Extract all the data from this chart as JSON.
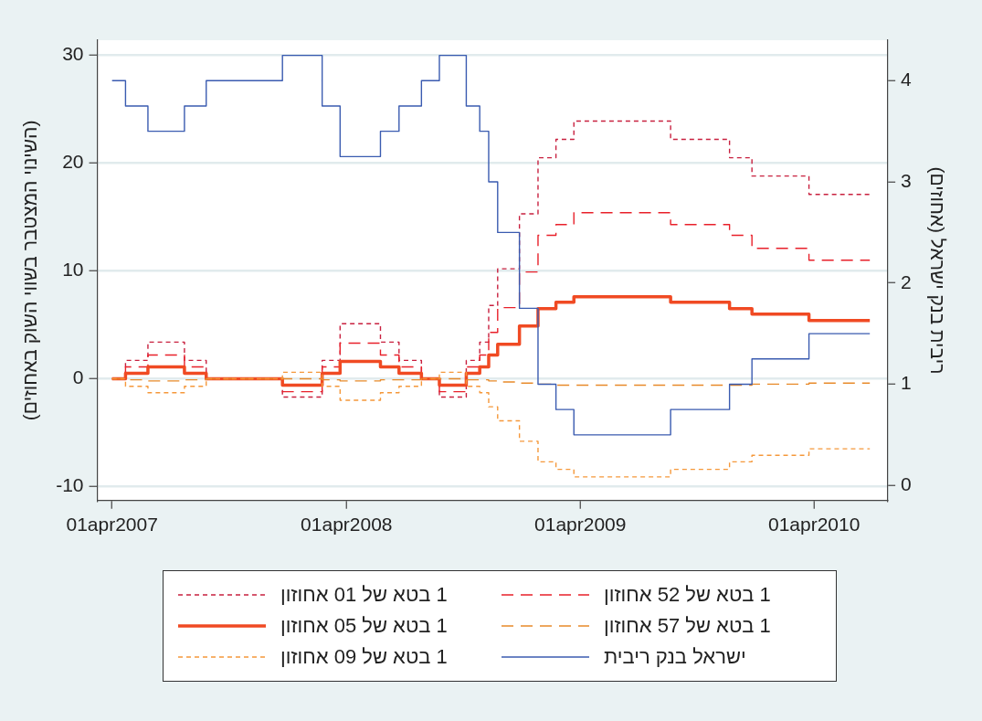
{
  "chart_data": {
    "type": "step",
    "x": [
      "2007-04-01",
      "2007-04-22",
      "2007-05-27",
      "2007-07-23",
      "2007-08-26",
      "2007-12-23",
      "2008-02-23",
      "2008-03-22",
      "2008-05-24",
      "2008-06-22",
      "2008-07-27",
      "2008-08-24",
      "2008-10-05",
      "2008-10-26",
      "2008-11-09",
      "2008-11-23",
      "2008-12-27",
      "2009-01-25",
      "2009-02-22",
      "2009-03-22",
      "2009-08-20",
      "2009-11-20",
      "2009-12-25",
      "2010-03-24",
      "2010-06-27"
    ],
    "series": [
      {
        "name": "1 בטא של 01 אחוזון",
        "color": "#c8203f",
        "line_style": "dotted",
        "values": [
          0,
          1.7,
          3.4,
          1.7,
          0,
          -1.7,
          1.7,
          5.1,
          3.4,
          1.7,
          0,
          -1.7,
          1.7,
          3.4,
          6.8,
          10.2,
          15.3,
          20.5,
          22.2,
          23.9,
          22.2,
          20.5,
          18.8,
          17.1,
          17.1
        ]
      },
      {
        "name": "1 בטא של 52 אחוזון",
        "color": "#e8202a",
        "line_style": "dashed",
        "values": [
          0,
          1.1,
          2.2,
          1.1,
          0,
          -1.2,
          1.1,
          3.3,
          2.2,
          1.1,
          0,
          -1.2,
          1.1,
          2.2,
          4.3,
          6.6,
          9.9,
          13.3,
          14.3,
          15.4,
          14.3,
          13.3,
          12.1,
          11.0,
          11.0
        ]
      },
      {
        "name": "1 בטא של 05 אחוזון",
        "color": "#f04a23",
        "line_style": "solid",
        "values": [
          0,
          0.5,
          1.1,
          0.5,
          0,
          -0.6,
          0.5,
          1.6,
          1.1,
          0.5,
          0,
          -0.6,
          0.5,
          1.1,
          2.2,
          3.2,
          4.9,
          6.5,
          7.1,
          7.6,
          7.1,
          6.5,
          6.0,
          5.4,
          5.4
        ]
      },
      {
        "name": "1 בטא של 57 אחוזון",
        "color": "#e88a2a",
        "line_style": "dashed",
        "values": [
          0,
          -0.1,
          -0.2,
          -0.1,
          0,
          0,
          -0.1,
          -0.2,
          -0.1,
          -0.1,
          0,
          0,
          -0.1,
          -0.1,
          -0.2,
          -0.3,
          -0.4,
          -0.5,
          -0.6,
          -0.6,
          -0.6,
          -0.6,
          -0.5,
          -0.4,
          -0.4
        ]
      },
      {
        "name": "1 בטא של 09 אחוזון",
        "color": "#f5983a",
        "line_style": "dotted",
        "values": [
          0,
          -0.7,
          -1.3,
          -0.7,
          0,
          0.6,
          -0.7,
          -2.0,
          -1.3,
          -0.7,
          0,
          0.6,
          -0.7,
          -1.3,
          -2.6,
          -3.9,
          -5.8,
          -7.7,
          -8.4,
          -9.1,
          -8.4,
          -7.7,
          -7.1,
          -6.5,
          -6.5
        ]
      },
      {
        "name": "ישראל בנק ריבית",
        "color": "#3a5bb0",
        "line_style": "solid",
        "axis": "y2",
        "values": [
          4.0,
          3.75,
          3.5,
          3.75,
          4.0,
          4.25,
          3.75,
          3.25,
          3.5,
          3.75,
          4.0,
          4.25,
          3.75,
          3.5,
          3.0,
          2.5,
          1.75,
          1.0,
          0.75,
          0.5,
          0.75,
          1.0,
          1.25,
          1.5,
          1.5
        ]
      }
    ],
    "xlim": [
      "2007-03-09",
      "2010-07-24"
    ],
    "xticks": [
      {
        "value": "2007-04-01",
        "label": "01apr2007"
      },
      {
        "value": "2008-04-01",
        "label": "01apr2008"
      },
      {
        "value": "2009-04-01",
        "label": "01apr2009"
      },
      {
        "value": "2010-04-01",
        "label": "01apr2010"
      }
    ],
    "ylim": [
      -11.3,
      31.4
    ],
    "yticks": [
      -10,
      0,
      10,
      20,
      30
    ],
    "y2lim": [
      -0.15,
      4.4
    ],
    "y2ticks": [
      0,
      1,
      2,
      3,
      4
    ],
    "ylabel": "(השינוי המצטבר בשווי השוק באחוזים)",
    "y2label": "ריבית בנק ישראל (אחוזים)",
    "grid": "y",
    "legend": "bottom"
  }
}
